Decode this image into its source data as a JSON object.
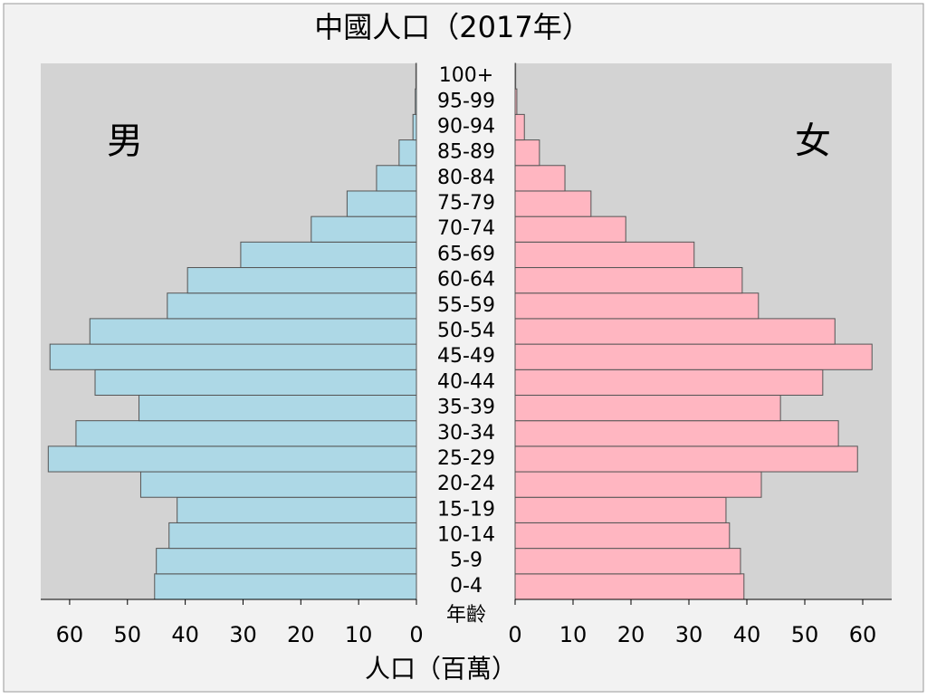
{
  "chart_data": {
    "type": "pyramid",
    "title": "中國人口（2017年）",
    "xlabel": "人口（百萬）",
    "category_label": "年齡",
    "categories": [
      "0-4",
      "5-9",
      "10-14",
      "15-19",
      "20-24",
      "25-29",
      "30-34",
      "35-39",
      "40-44",
      "45-49",
      "50-54",
      "55-59",
      "60-64",
      "65-69",
      "70-74",
      "75-79",
      "80-84",
      "85-89",
      "90-94",
      "95-99",
      "100+"
    ],
    "series": [
      {
        "name": "男",
        "color": "#add8e6",
        "side": "left",
        "values": [
          45.3,
          45.0,
          42.8,
          41.4,
          47.7,
          63.7,
          58.9,
          48.0,
          55.6,
          63.4,
          56.5,
          43.1,
          39.6,
          30.4,
          18.2,
          12.0,
          6.9,
          3.0,
          0.6,
          0.2,
          0.1
        ]
      },
      {
        "name": "女",
        "color": "#ffb6c1",
        "side": "right",
        "values": [
          39.5,
          38.9,
          37.0,
          36.4,
          42.5,
          59.1,
          55.8,
          45.8,
          53.1,
          61.6,
          55.2,
          42.0,
          39.2,
          30.9,
          19.1,
          13.1,
          8.6,
          4.2,
          1.6,
          0.3,
          0.1
        ]
      }
    ],
    "xlim": [
      0,
      65
    ],
    "xticks": [
      0,
      10,
      20,
      30,
      40,
      50,
      60
    ]
  }
}
